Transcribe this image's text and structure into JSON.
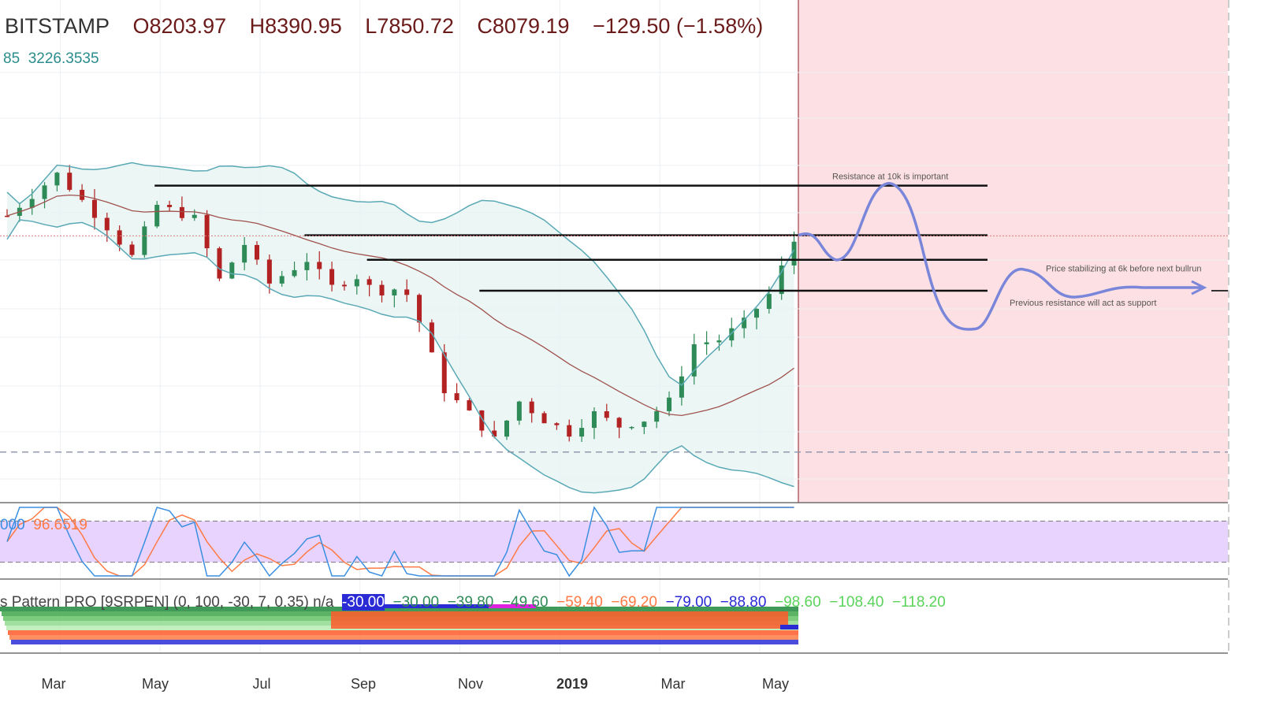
{
  "header": {
    "exchange": "BITSTAMP",
    "open": "O8203.97",
    "high": "H8390.95",
    "low": "L7850.72",
    "close": "C8079.19",
    "change": "−129.50 (−1.58%)"
  },
  "bb_label": {
    "v1": "85",
    "v2": "3226.3535"
  },
  "stoch_label": {
    "v1": "000",
    "v2": "96.6519"
  },
  "indicator_label": {
    "name": "s Pattern PRO [9SRPEN] (0, 100, -30, 7, 0.35)  n/a",
    "values": [
      "-30.00",
      "−30.00",
      "−39.80",
      "−49.60",
      "−59.40",
      "−69.20",
      "−79.00",
      "−88.80",
      "−98.60",
      "−108.40",
      "−118.20"
    ]
  },
  "annotations": {
    "resistance": "Resistance at 10k is important",
    "stabilizing": "Price stabilizing at 6k before next bullrun",
    "support": "Previous resistance will act as support"
  },
  "colors": {
    "up": "#2e8b57",
    "down": "#b22222",
    "band": "#5aa9b5",
    "band_fill": "#e6f4f2",
    "ma": "#a0524d",
    "projection": "#fde0e3",
    "path": "#7a86d9",
    "stoch_k": "#3b8fe0",
    "stoch_d": "#ff7a45",
    "stoch_band": "#e8d3ff"
  },
  "chart_data": {
    "type": "candlestick",
    "symbol": "BITSTAMP",
    "x_ticks": [
      "Mar",
      "May",
      "Jul",
      "Sep",
      "Nov",
      "2019",
      "Mar",
      "May"
    ],
    "price_path": [
      [
        0,
        8800
      ],
      [
        4,
        10500
      ],
      [
        8,
        8400
      ],
      [
        10,
        7400
      ],
      [
        12,
        9200
      ],
      [
        15,
        8700
      ],
      [
        17,
        6700
      ],
      [
        19,
        7800
      ],
      [
        21,
        6600
      ],
      [
        24,
        7300
      ],
      [
        26,
        6500
      ],
      [
        28,
        6800
      ],
      [
        29,
        6500
      ],
      [
        30,
        6400
      ],
      [
        31,
        6450
      ],
      [
        32,
        6300
      ],
      [
        33,
        5600
      ],
      [
        35,
        4200
      ],
      [
        37,
        3800
      ],
      [
        39,
        3400
      ],
      [
        41,
        4000
      ],
      [
        43,
        3700
      ],
      [
        45,
        3500
      ],
      [
        47,
        3800
      ],
      [
        49,
        3600
      ],
      [
        51,
        3700
      ],
      [
        53,
        4000
      ],
      [
        55,
        5100
      ],
      [
        57,
        5200
      ],
      [
        59,
        5600
      ],
      [
        61,
        6300
      ],
      [
        63,
        7900
      ]
    ],
    "horizontal_levels": [
      10000,
      8100,
      7300,
      6400
    ],
    "annotations": [
      "Resistance at 10k is important",
      "Price stabilizing at 6k before next bullrun",
      "Previous resistance will act as support"
    ],
    "last_bar": {
      "open": 8203.97,
      "high": 8390.95,
      "low": 7850.72,
      "close": 8079.19,
      "change": -129.5,
      "change_pct": -1.58
    },
    "stoch_levels": [
      80,
      20
    ]
  }
}
